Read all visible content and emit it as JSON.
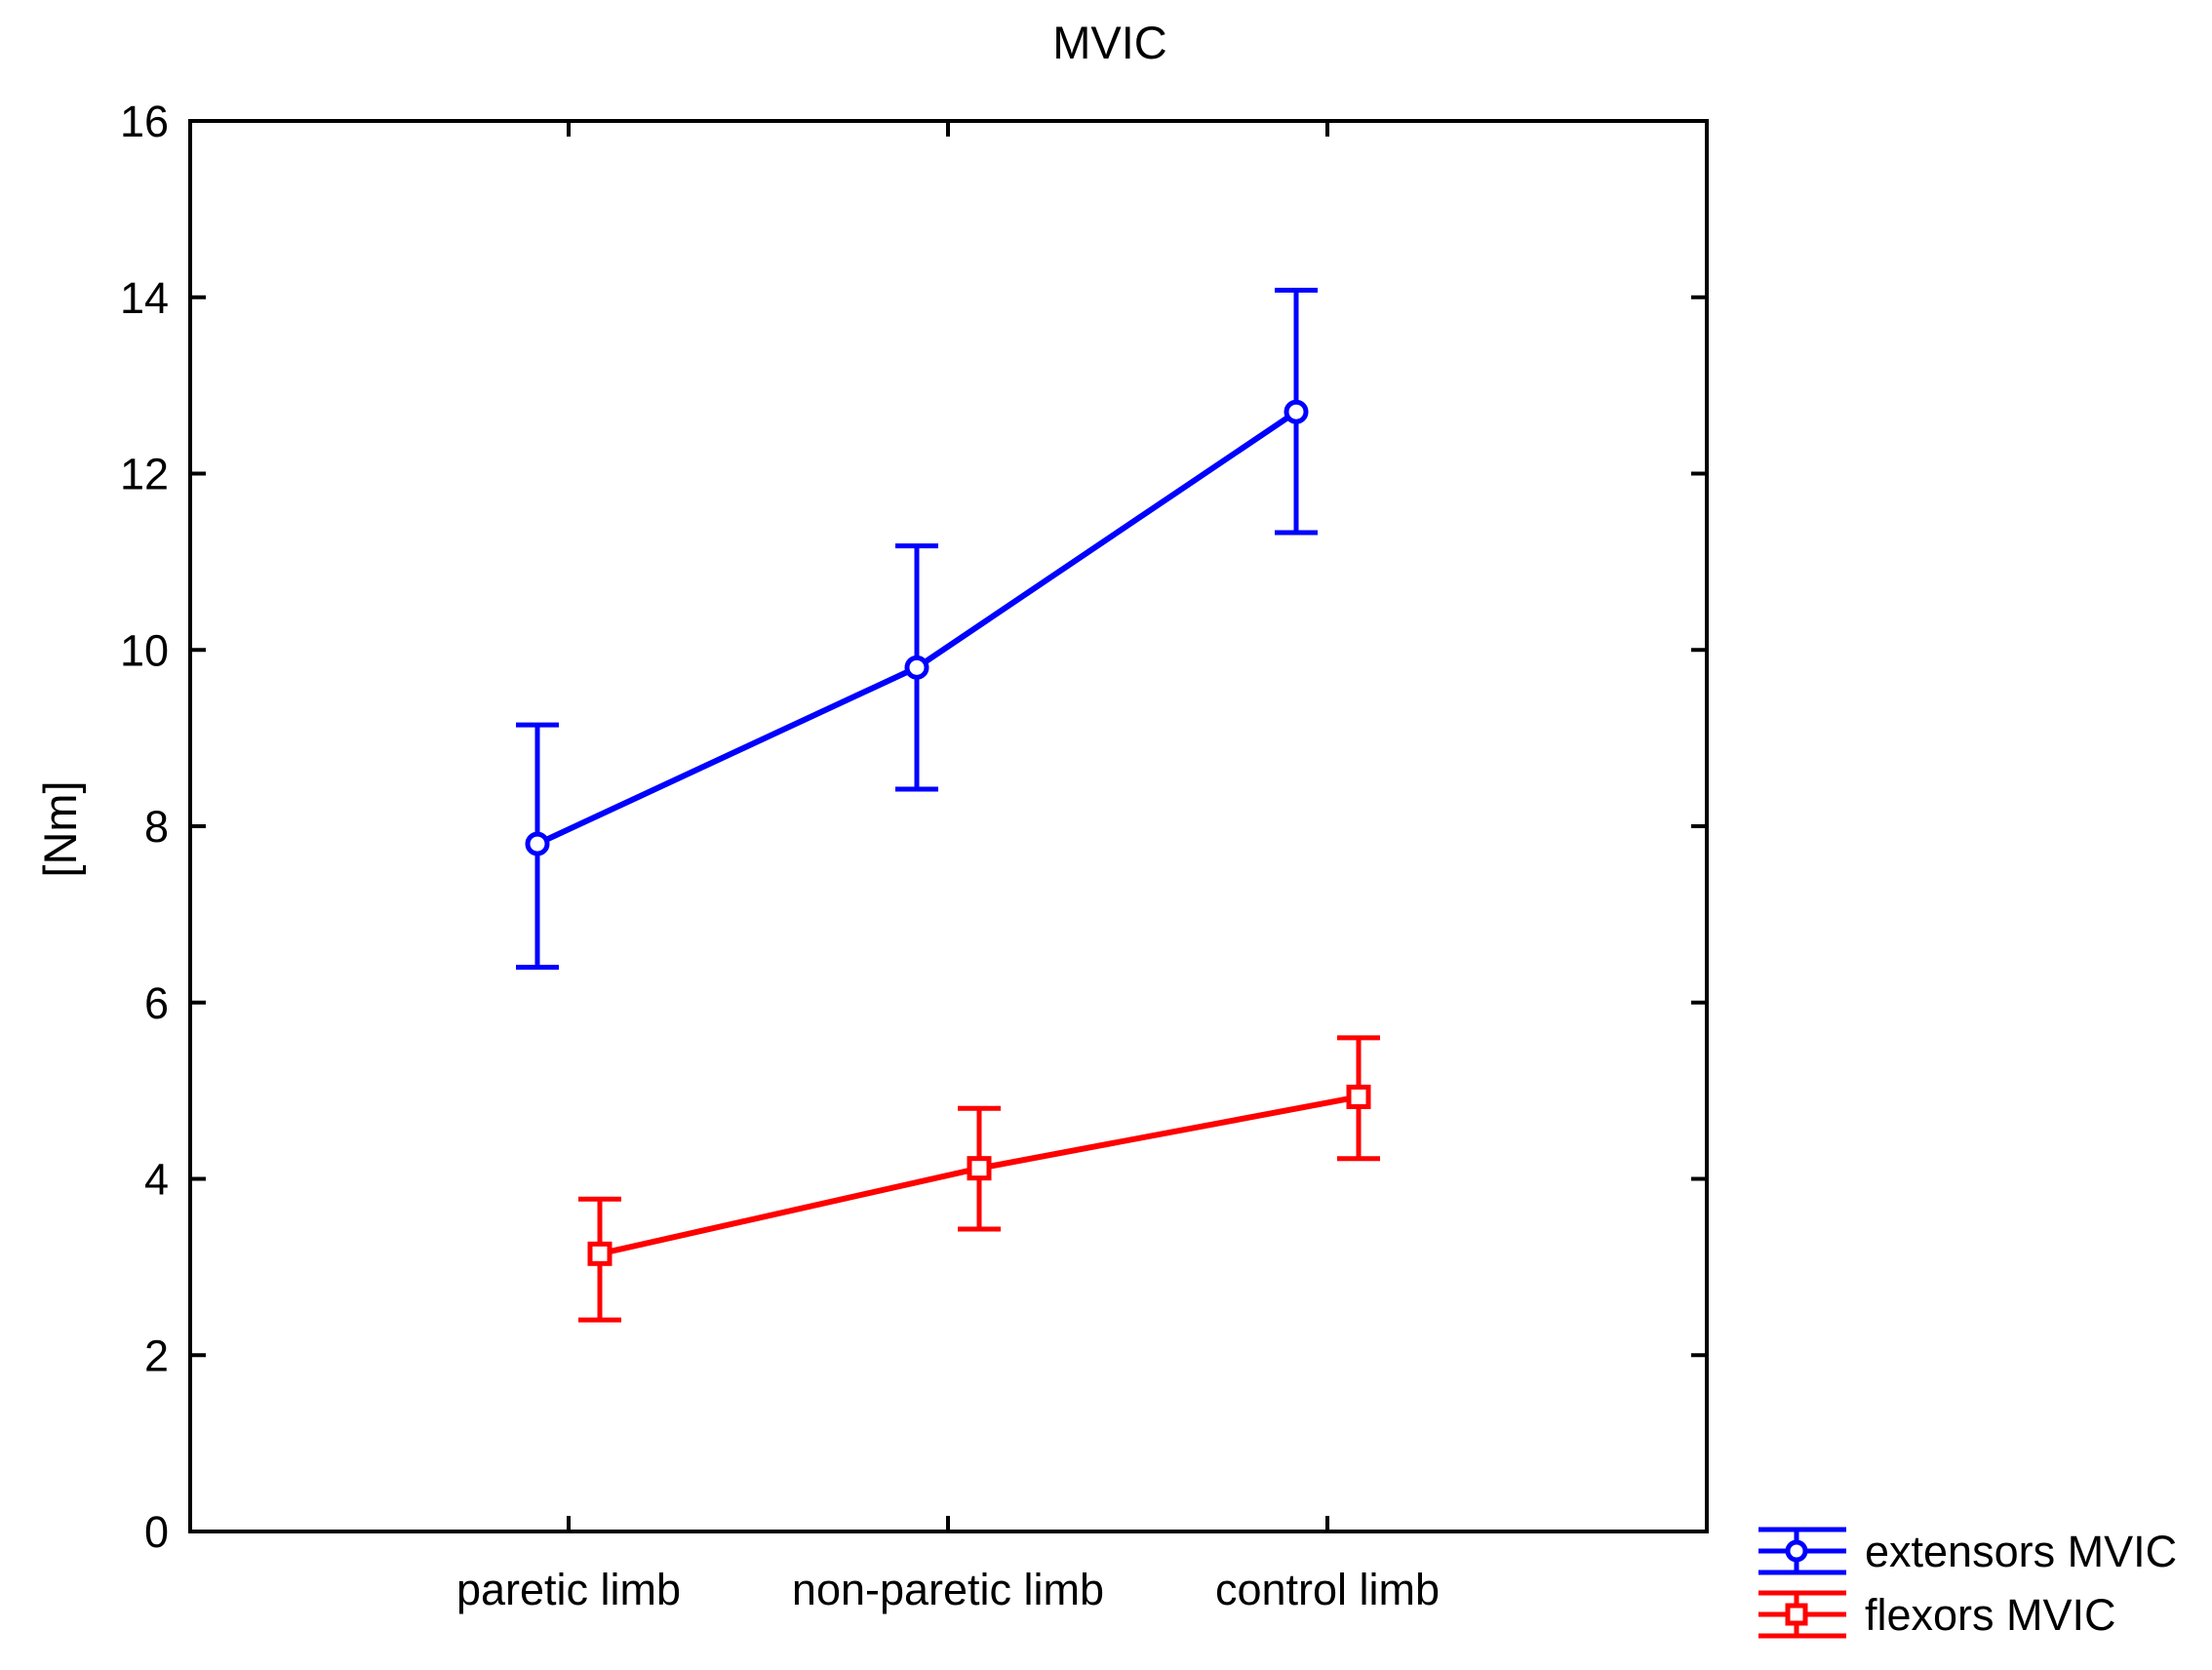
{
  "chart_data": {
    "type": "line",
    "title": "MVIC",
    "xlabel": "",
    "ylabel": "[Nm]",
    "ylim": [
      0,
      16
    ],
    "yticks": [
      0,
      2,
      4,
      6,
      8,
      10,
      12,
      14,
      16
    ],
    "categories": [
      "paretic limb",
      "non-paretic limb",
      "control limb"
    ],
    "grid": false,
    "legend_position": "bottom-right",
    "series": [
      {
        "name": "extensors MVIC",
        "color": "#0000ff",
        "marker": "circle",
        "values": [
          7.8,
          9.8,
          12.7
        ],
        "error_low": [
          6.4,
          8.42,
          11.33
        ],
        "error_high": [
          9.15,
          11.18,
          14.08
        ]
      },
      {
        "name": "flexors MVIC",
        "color": "#ff0000",
        "marker": "square",
        "values": [
          3.15,
          4.12,
          4.93
        ],
        "error_low": [
          2.4,
          3.43,
          4.23
        ],
        "error_high": [
          3.77,
          4.8,
          5.6
        ]
      }
    ]
  }
}
